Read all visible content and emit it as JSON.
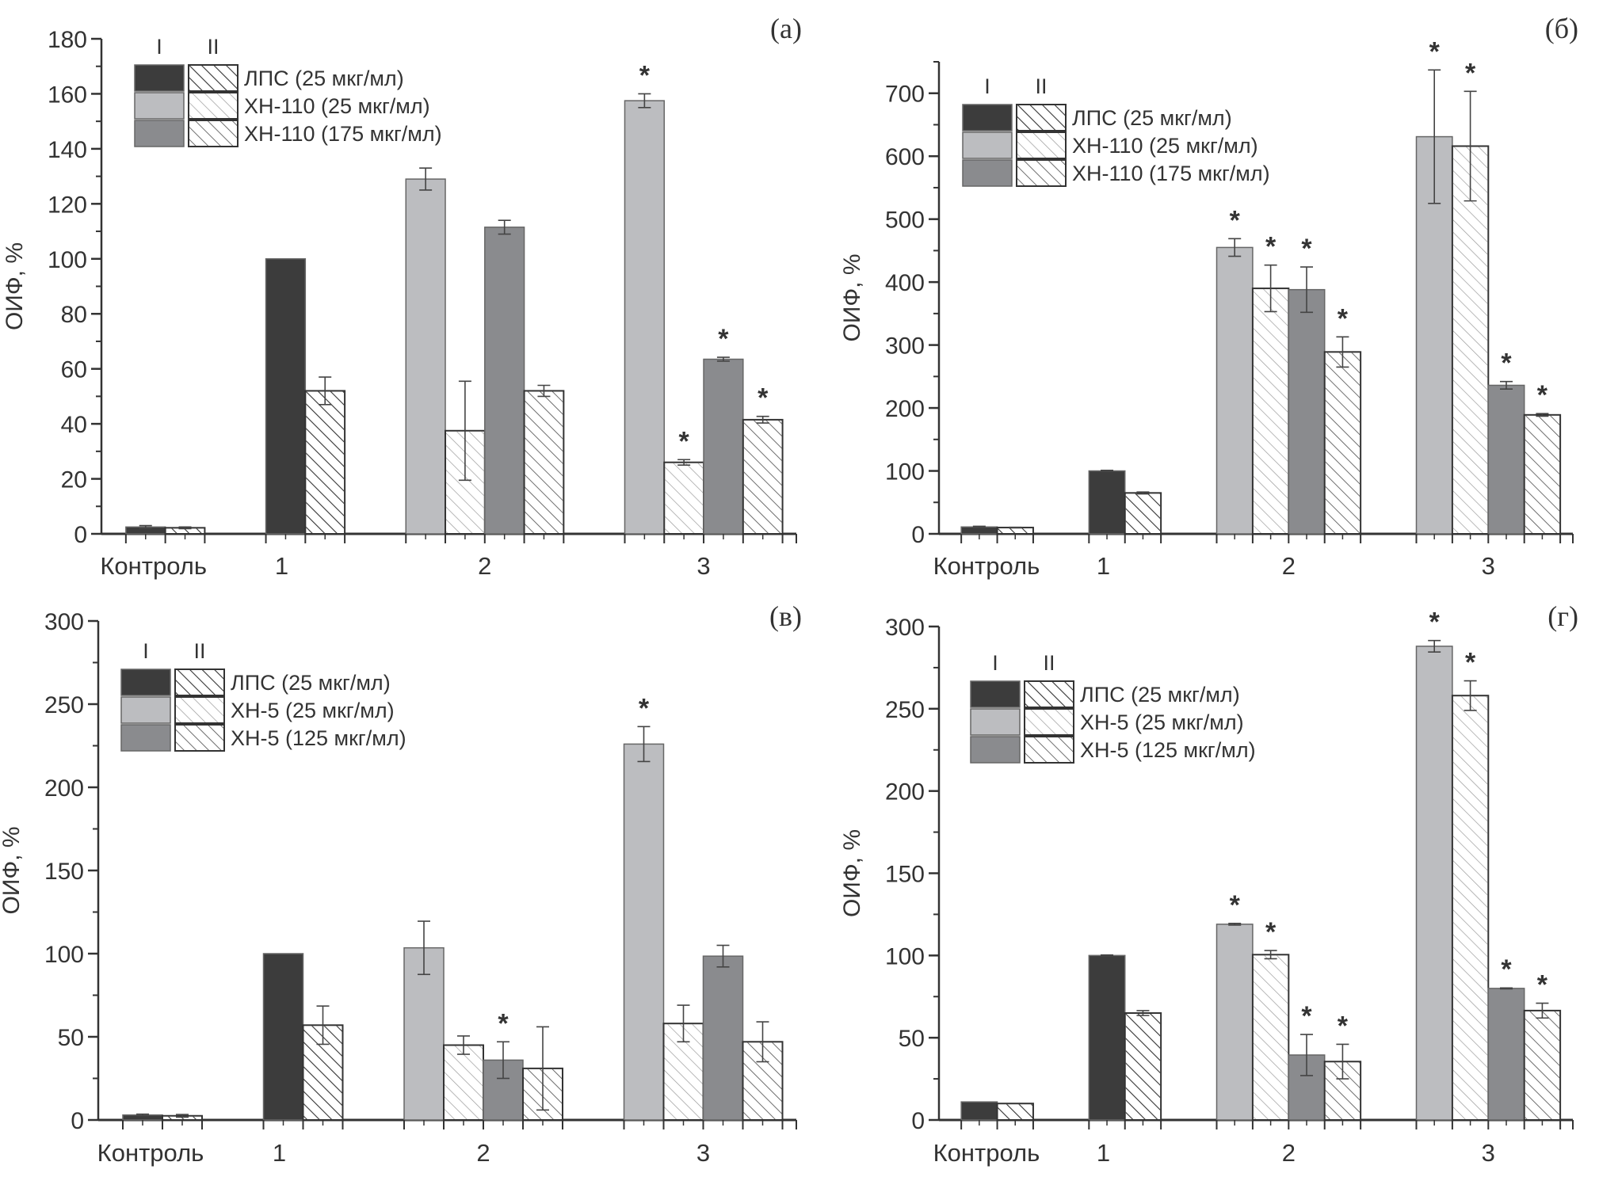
{
  "chart_data": [
    {
      "type": "bar",
      "panel_label": "(а)",
      "ylabel": "ОИФ, %",
      "xlabel": "",
      "ylim": [
        0,
        180
      ],
      "yticks": [
        0,
        20,
        40,
        60,
        80,
        100,
        120,
        140,
        160,
        180
      ],
      "categories": [
        "Контроль",
        "1",
        "2",
        "3"
      ],
      "legend": {
        "placement": "top-left",
        "column_headers": [
          "I",
          "II"
        ],
        "entries": [
          "ЛПС (25 мкг/мл)",
          "ХН-110 (25 мкг/мл)",
          "ХН-110 (175 мкг/мл)"
        ]
      },
      "bars": [
        {
          "category": "Контроль",
          "series": "ЛПС (25 мкг/мл)",
          "condition": "I",
          "value": 2.5,
          "error": 0.5,
          "significant": false
        },
        {
          "category": "Контроль",
          "series": "ЛПС (25 мкг/мл)",
          "condition": "II",
          "value": 2.2,
          "error": 0.3,
          "significant": false
        },
        {
          "category": "1",
          "series": "ЛПС (25 мкг/мл)",
          "condition": "I",
          "value": 100,
          "error": 0,
          "significant": false
        },
        {
          "category": "1",
          "series": "ЛПС (25 мкг/мл)",
          "condition": "II",
          "value": 52,
          "error": 5,
          "significant": false
        },
        {
          "category": "2",
          "series": "ХН-110 (25 мкг/мл)",
          "condition": "I",
          "value": 129,
          "error": 4,
          "significant": false
        },
        {
          "category": "2",
          "series": "ХН-110 (25 мкг/мл)",
          "condition": "II",
          "value": 37.5,
          "error": 18,
          "significant": false
        },
        {
          "category": "2",
          "series": "ХН-110 (175 мкг/мл)",
          "condition": "I",
          "value": 111.5,
          "error": 2.5,
          "significant": false
        },
        {
          "category": "2",
          "series": "ХН-110 (175 мкг/мл)",
          "condition": "II",
          "value": 52,
          "error": 2,
          "significant": false
        },
        {
          "category": "3",
          "series": "ХН-110 (25 мкг/мл)",
          "condition": "I",
          "value": 157.5,
          "error": 2.5,
          "significant": true
        },
        {
          "category": "3",
          "series": "ХН-110 (25 мкг/мл)",
          "condition": "II",
          "value": 26,
          "error": 1,
          "significant": true
        },
        {
          "category": "3",
          "series": "ХН-110 (175 мкг/мл)",
          "condition": "I",
          "value": 63.5,
          "error": 0.7,
          "significant": true
        },
        {
          "category": "3",
          "series": "ХН-110 (175 мкг/мл)",
          "condition": "II",
          "value": 41.5,
          "error": 1.2,
          "significant": true
        }
      ]
    },
    {
      "type": "bar",
      "panel_label": "(б)",
      "ylabel": "ОИФ, %",
      "xlabel": "",
      "ylim": [
        0,
        750
      ],
      "yticks": [
        0,
        100,
        200,
        300,
        400,
        500,
        600,
        700
      ],
      "categories": [
        "Контроль",
        "1",
        "2",
        "3"
      ],
      "legend": {
        "placement": "top-left",
        "column_headers": [
          "I",
          "II"
        ],
        "entries": [
          "ЛПС (25 мкг/мл)",
          "ХН-110 (25 мкг/мл)",
          "ХН-110 (175 мкг/мл)"
        ]
      },
      "bars": [
        {
          "category": "Контроль",
          "series": "ЛПС (25 мкг/мл)",
          "condition": "I",
          "value": 11,
          "error": 1,
          "significant": false
        },
        {
          "category": "Контроль",
          "series": "ЛПС (25 мкг/мл)",
          "condition": "II",
          "value": 10,
          "error": 0.5,
          "significant": false
        },
        {
          "category": "1",
          "series": "ЛПС (25 мкг/мл)",
          "condition": "I",
          "value": 100,
          "error": 1,
          "significant": false
        },
        {
          "category": "1",
          "series": "ЛПС (25 мкг/мл)",
          "condition": "II",
          "value": 65,
          "error": 1.5,
          "significant": false
        },
        {
          "category": "2",
          "series": "ХН-110 (25 мкг/мл)",
          "condition": "I",
          "value": 455,
          "error": 14,
          "significant": true
        },
        {
          "category": "2",
          "series": "ХН-110 (25 мкг/мл)",
          "condition": "II",
          "value": 390,
          "error": 37,
          "significant": true
        },
        {
          "category": "2",
          "series": "ХН-110 (175 мкг/мл)",
          "condition": "I",
          "value": 388,
          "error": 36,
          "significant": true
        },
        {
          "category": "2",
          "series": "ХН-110 (175 мкг/мл)",
          "condition": "II",
          "value": 289,
          "error": 24,
          "significant": true
        },
        {
          "category": "3",
          "series": "ХН-110 (25 мкг/мл)",
          "condition": "I",
          "value": 631,
          "error": 106,
          "significant": true
        },
        {
          "category": "3",
          "series": "ХН-110 (25 мкг/мл)",
          "condition": "II",
          "value": 616,
          "error": 87,
          "significant": true
        },
        {
          "category": "3",
          "series": "ХН-110 (175 мкг/мл)",
          "condition": "I",
          "value": 236,
          "error": 6,
          "significant": true
        },
        {
          "category": "3",
          "series": "ХН-110 (175 мкг/мл)",
          "condition": "II",
          "value": 189,
          "error": 2,
          "significant": true
        }
      ]
    },
    {
      "type": "bar",
      "panel_label": "(в)",
      "ylabel": "ОИФ, %",
      "xlabel": "",
      "ylim": [
        0,
        300
      ],
      "yticks": [
        0,
        50,
        100,
        150,
        200,
        250,
        300
      ],
      "categories": [
        "Контроль",
        "1",
        "2",
        "3"
      ],
      "legend": {
        "placement": "top-left",
        "column_headers": [
          "I",
          "II"
        ],
        "entries": [
          "ЛПС (25 мкг/мл)",
          "ХН-5 (25 мкг/мл)",
          "ХН-5 (125 мкг/мл)"
        ]
      },
      "bars": [
        {
          "category": "Контроль",
          "series": "ЛПС (25 мкг/мл)",
          "condition": "I",
          "value": 3,
          "error": 0.5,
          "significant": false
        },
        {
          "category": "Контроль",
          "series": "ЛПС (25 мкг/мл)",
          "condition": "II",
          "value": 2.5,
          "error": 0.8,
          "significant": false
        },
        {
          "category": "1",
          "series": "ЛПС (25 мкг/мл)",
          "condition": "I",
          "value": 100,
          "error": 0,
          "significant": false
        },
        {
          "category": "1",
          "series": "ЛПС (25 мкг/мл)",
          "condition": "II",
          "value": 57,
          "error": 11.5,
          "significant": false
        },
        {
          "category": "2",
          "series": "ХН-5 (25 мкг/мл)",
          "condition": "I",
          "value": 103.5,
          "error": 16,
          "significant": false
        },
        {
          "category": "2",
          "series": "ХН-5 (25 мкг/мл)",
          "condition": "II",
          "value": 45,
          "error": 5.5,
          "significant": false
        },
        {
          "category": "2",
          "series": "ХН-5 (125 мкг/мл)",
          "condition": "I",
          "value": 36,
          "error": 11,
          "significant": true
        },
        {
          "category": "2",
          "series": "ХН-5 (125 мкг/мл)",
          "condition": "II",
          "value": 31,
          "error": 25,
          "significant": false
        },
        {
          "category": "3",
          "series": "ХН-5 (25 мкг/мл)",
          "condition": "I",
          "value": 226,
          "error": 10.5,
          "significant": true
        },
        {
          "category": "3",
          "series": "ХН-5 (25 мкг/мл)",
          "condition": "II",
          "value": 58,
          "error": 11,
          "significant": false
        },
        {
          "category": "3",
          "series": "ХН-5 (125 мкг/мл)",
          "condition": "I",
          "value": 98.5,
          "error": 6.5,
          "significant": false
        },
        {
          "category": "3",
          "series": "ХН-5 (125 мкг/мл)",
          "condition": "II",
          "value": 47,
          "error": 12,
          "significant": false
        }
      ]
    },
    {
      "type": "bar",
      "panel_label": "(г)",
      "ylabel": "ОИФ, %",
      "xlabel": "",
      "ylim": [
        0,
        300
      ],
      "yticks": [
        0,
        50,
        100,
        150,
        200,
        250,
        300
      ],
      "categories": [
        "Контроль",
        "1",
        "2",
        "3"
      ],
      "legend": {
        "placement": "top-left",
        "column_headers": [
          "I",
          "II"
        ],
        "entries": [
          "ЛПС (25 мкг/мл)",
          "ХН-5 (25 мкг/мл)",
          "ХН-5 (125 мкг/мл)"
        ]
      },
      "bars": [
        {
          "category": "Контроль",
          "series": "ЛПС (25 мкг/мл)",
          "condition": "I",
          "value": 11,
          "error": 0,
          "significant": false
        },
        {
          "category": "Контроль",
          "series": "ЛПС (25 мкг/мл)",
          "condition": "II",
          "value": 10,
          "error": 0,
          "significant": false
        },
        {
          "category": "1",
          "series": "ЛПС (25 мкг/мл)",
          "condition": "I",
          "value": 100,
          "error": 0.3,
          "significant": false
        },
        {
          "category": "1",
          "series": "ЛПС (25 мкг/мл)",
          "condition": "II",
          "value": 65,
          "error": 1.5,
          "significant": false
        },
        {
          "category": "2",
          "series": "ХН-5 (25 мкг/мл)",
          "condition": "I",
          "value": 119,
          "error": 0.5,
          "significant": true
        },
        {
          "category": "2",
          "series": "ХН-5 (25 мкг/мл)",
          "condition": "II",
          "value": 100.5,
          "error": 2.5,
          "significant": true
        },
        {
          "category": "2",
          "series": "ХН-5 (125 мкг/мл)",
          "condition": "I",
          "value": 39.5,
          "error": 12.5,
          "significant": true
        },
        {
          "category": "2",
          "series": "ХН-5 (125 мкг/мл)",
          "condition": "II",
          "value": 35.5,
          "error": 10.5,
          "significant": true
        },
        {
          "category": "3",
          "series": "ХН-5 (25 мкг/мл)",
          "condition": "I",
          "value": 288,
          "error": 3.5,
          "significant": true
        },
        {
          "category": "3",
          "series": "ХН-5 (25 мкг/мл)",
          "condition": "II",
          "value": 258,
          "error": 9,
          "significant": true
        },
        {
          "category": "3",
          "series": "ХН-5 (125 мкг/мл)",
          "condition": "I",
          "value": 80,
          "error": 0.3,
          "significant": true
        },
        {
          "category": "3",
          "series": "ХН-5 (125 мкг/мл)",
          "condition": "II",
          "value": 66.5,
          "error": 4.5,
          "significant": true
        }
      ]
    }
  ],
  "colors": {
    "ЛПС (25 мкг/мл)": "#3c3c3c",
    "ХН-110 (25 мкг/мл)": "#bcbdc0",
    "ХН-110 (175 мкг/мл)": "#8a8b8e",
    "ХН-5 (25 мкг/мл)": "#bcbdc0",
    "ХН-5 (125 мкг/мл)": "#8a8b8e",
    "axis": "#333333"
  },
  "significance_marker": "*"
}
